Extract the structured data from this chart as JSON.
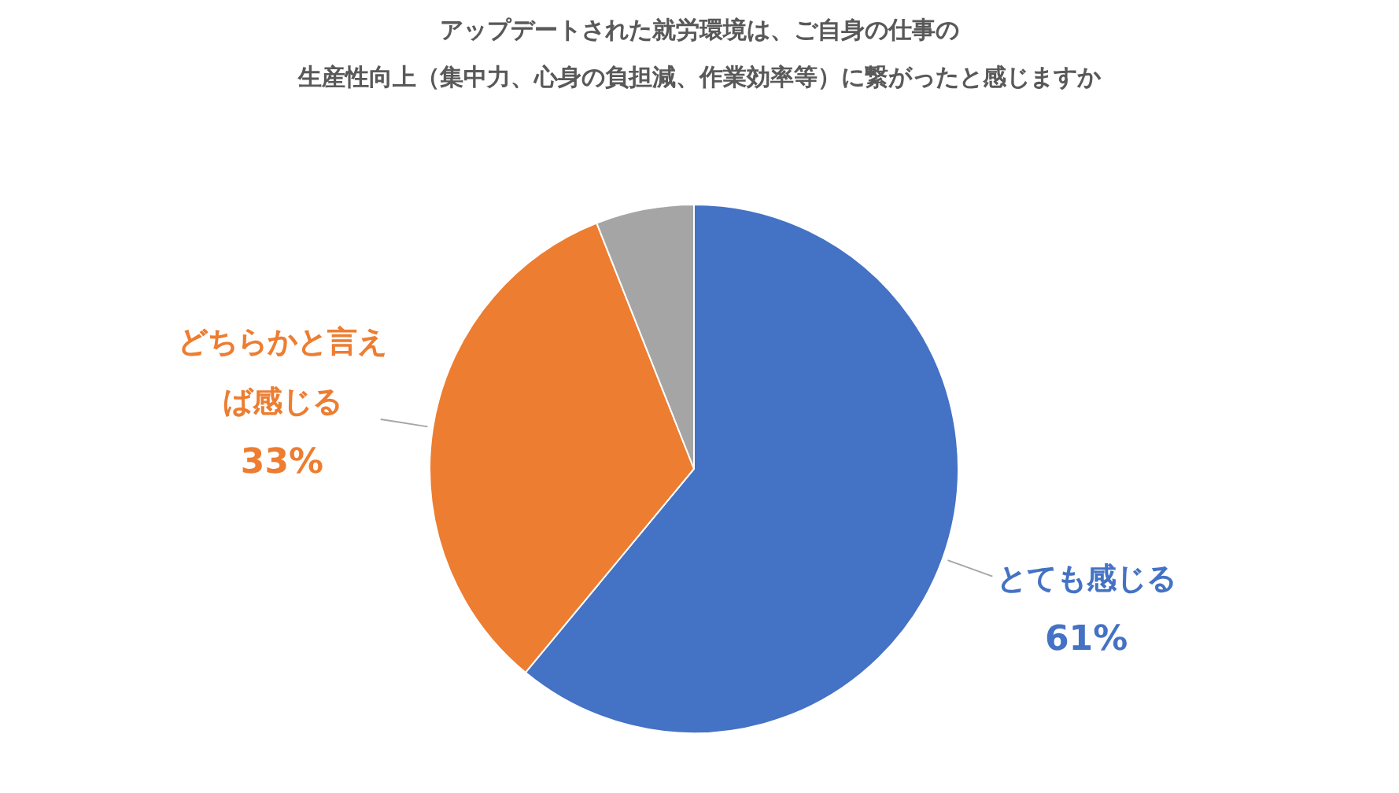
{
  "chart_data": {
    "type": "pie",
    "title": "アップデートされた就労環境は、ご自身の仕事の生産性向上（集中力、心身の負担減、作業効率等）に繋がったと感じますか",
    "categories": [
      "とても感じる",
      "どちらかと言えば感じる",
      null
    ],
    "values": [
      61,
      33,
      6
    ],
    "colors": [
      "#4472c4",
      "#ed7d31",
      "#a5a5a5"
    ],
    "value_labels": [
      "61%",
      "33%",
      null
    ]
  }
}
